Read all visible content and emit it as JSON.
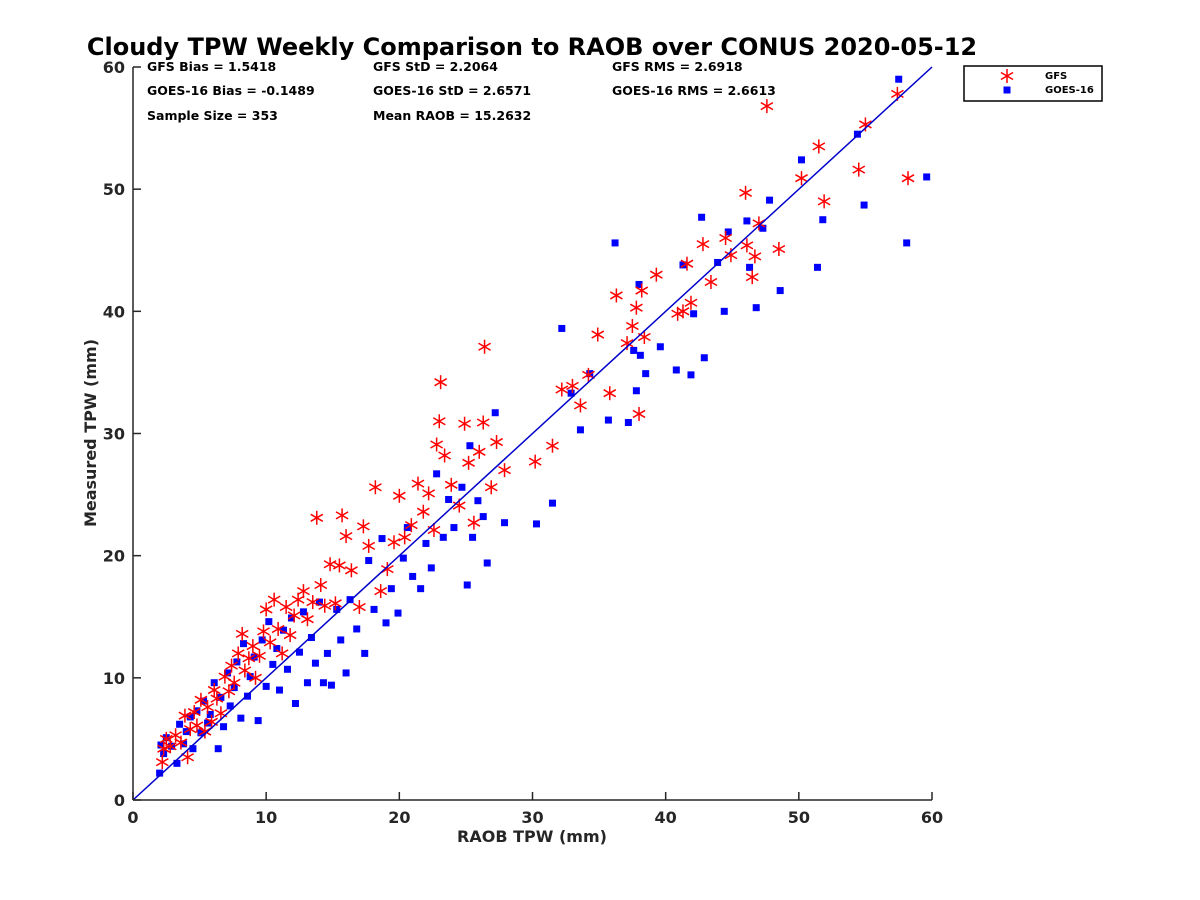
{
  "chart_data": {
    "type": "scatter",
    "title": "Cloudy TPW Weekly Comparison to RAOB over CONUS 2020-05-12",
    "xlabel": "RAOB TPW (mm)",
    "ylabel": "Measured TPW (mm)",
    "xlim": [
      0,
      60
    ],
    "ylim": [
      0,
      60
    ],
    "xticks": [
      "0",
      "10",
      "20",
      "30",
      "40",
      "50",
      "60"
    ],
    "yticks": [
      "0",
      "10",
      "20",
      "30",
      "40",
      "50",
      "60"
    ],
    "grid": false,
    "legend_position": "top-right outside",
    "reference_line": {
      "type": "1:1",
      "color": "#0000cc"
    },
    "stats": [
      {
        "text": "GFS Bias = 1.5418"
      },
      {
        "text": "GFS StD = 2.2064"
      },
      {
        "text": "GFS RMS = 2.6918"
      },
      {
        "text": "GOES-16 Bias = -0.1489"
      },
      {
        "text": "GOES-16 StD = 2.6571"
      },
      {
        "text": "GOES-16 RMS = 2.6613"
      },
      {
        "text": "Sample Size = 353"
      },
      {
        "text": "Mean RAOB = 15.2632"
      }
    ],
    "series": [
      {
        "name": "GFS",
        "marker": "asterisk",
        "color": "#ff0000",
        "points": [
          [
            2.2,
            3.1
          ],
          [
            2.3,
            4.2
          ],
          [
            2.5,
            5.0
          ],
          [
            2.8,
            4.4
          ],
          [
            3.2,
            5.3
          ],
          [
            3.6,
            4.7
          ],
          [
            3.9,
            6.9
          ],
          [
            4.1,
            3.5
          ],
          [
            4.3,
            5.8
          ],
          [
            4.6,
            7.2
          ],
          [
            4.8,
            6.1
          ],
          [
            5.1,
            8.2
          ],
          [
            5.4,
            5.6
          ],
          [
            5.6,
            7.6
          ],
          [
            5.9,
            6.4
          ],
          [
            6.1,
            9.0
          ],
          [
            6.3,
            8.3
          ],
          [
            6.6,
            7.1
          ],
          [
            6.9,
            10.1
          ],
          [
            7.2,
            8.9
          ],
          [
            7.4,
            11.0
          ],
          [
            7.6,
            9.6
          ],
          [
            7.9,
            12.0
          ],
          [
            8.2,
            13.6
          ],
          [
            8.4,
            10.6
          ],
          [
            8.7,
            11.6
          ],
          [
            9.0,
            12.6
          ],
          [
            9.2,
            10.0
          ],
          [
            9.5,
            11.8
          ],
          [
            9.8,
            13.8
          ],
          [
            10.0,
            15.6
          ],
          [
            10.3,
            12.9
          ],
          [
            10.6,
            16.4
          ],
          [
            10.9,
            14.0
          ],
          [
            11.2,
            12.0
          ],
          [
            11.5,
            15.8
          ],
          [
            11.8,
            13.5
          ],
          [
            12.1,
            15.1
          ],
          [
            12.4,
            16.4
          ],
          [
            12.8,
            17.1
          ],
          [
            13.1,
            14.8
          ],
          [
            13.5,
            16.2
          ],
          [
            13.8,
            23.1
          ],
          [
            14.1,
            17.6
          ],
          [
            14.4,
            15.9
          ],
          [
            14.8,
            19.3
          ],
          [
            15.2,
            16.1
          ],
          [
            15.5,
            19.2
          ],
          [
            15.7,
            23.3
          ],
          [
            16.0,
            21.6
          ],
          [
            16.4,
            18.8
          ],
          [
            17.0,
            15.8
          ],
          [
            17.3,
            22.4
          ],
          [
            17.7,
            20.8
          ],
          [
            18.2,
            25.6
          ],
          [
            18.6,
            17.1
          ],
          [
            19.1,
            18.9
          ],
          [
            19.6,
            21.1
          ],
          [
            20.0,
            24.9
          ],
          [
            20.4,
            21.5
          ],
          [
            20.9,
            22.5
          ],
          [
            21.4,
            25.9
          ],
          [
            21.8,
            23.6
          ],
          [
            22.2,
            25.1
          ],
          [
            22.6,
            22.1
          ],
          [
            22.8,
            29.1
          ],
          [
            23.0,
            31.0
          ],
          [
            23.1,
            34.2
          ],
          [
            23.4,
            28.2
          ],
          [
            23.9,
            25.8
          ],
          [
            24.5,
            24.1
          ],
          [
            24.9,
            30.8
          ],
          [
            25.2,
            27.6
          ],
          [
            25.6,
            22.7
          ],
          [
            26.0,
            28.5
          ],
          [
            26.3,
            30.9
          ],
          [
            26.4,
            37.1
          ],
          [
            26.9,
            25.6
          ],
          [
            27.3,
            29.3
          ],
          [
            27.9,
            27.0
          ],
          [
            30.2,
            27.7
          ],
          [
            31.5,
            29.0
          ],
          [
            32.2,
            33.6
          ],
          [
            33.0,
            33.9
          ],
          [
            33.6,
            32.3
          ],
          [
            34.2,
            34.8
          ],
          [
            34.9,
            38.1
          ],
          [
            35.8,
            33.3
          ],
          [
            36.3,
            41.3
          ],
          [
            37.1,
            37.4
          ],
          [
            37.5,
            38.8
          ],
          [
            37.8,
            40.3
          ],
          [
            38.0,
            31.6
          ],
          [
            38.2,
            41.7
          ],
          [
            38.4,
            37.9
          ],
          [
            39.3,
            43.0
          ],
          [
            40.9,
            39.8
          ],
          [
            41.3,
            40.0
          ],
          [
            41.6,
            43.9
          ],
          [
            41.9,
            40.7
          ],
          [
            42.8,
            45.5
          ],
          [
            43.4,
            42.4
          ],
          [
            44.5,
            46.0
          ],
          [
            44.9,
            44.6
          ],
          [
            46.0,
            49.7
          ],
          [
            46.1,
            45.4
          ],
          [
            46.5,
            42.8
          ],
          [
            46.7,
            44.5
          ],
          [
            47.0,
            47.2
          ],
          [
            47.6,
            56.8
          ],
          [
            48.5,
            45.1
          ],
          [
            50.2,
            50.9
          ],
          [
            51.5,
            53.5
          ],
          [
            51.9,
            49.0
          ],
          [
            54.5,
            51.6
          ],
          [
            55.0,
            55.3
          ],
          [
            57.4,
            57.8
          ],
          [
            58.2,
            50.9
          ]
        ]
      },
      {
        "name": "GOES-16",
        "marker": "square",
        "color": "#0000ff",
        "points": [
          [
            2.0,
            2.2
          ],
          [
            2.1,
            4.5
          ],
          [
            2.3,
            3.8
          ],
          [
            2.5,
            5.1
          ],
          [
            2.9,
            4.4
          ],
          [
            3.3,
            3.0
          ],
          [
            3.5,
            6.2
          ],
          [
            3.8,
            4.6
          ],
          [
            4.0,
            5.6
          ],
          [
            4.3,
            6.8
          ],
          [
            4.5,
            4.2
          ],
          [
            4.8,
            7.3
          ],
          [
            5.1,
            5.5
          ],
          [
            5.3,
            8.1
          ],
          [
            5.6,
            6.3
          ],
          [
            5.8,
            7.0
          ],
          [
            6.1,
            9.6
          ],
          [
            6.4,
            4.2
          ],
          [
            6.6,
            8.4
          ],
          [
            6.8,
            6.0
          ],
          [
            7.1,
            10.4
          ],
          [
            7.3,
            7.7
          ],
          [
            7.6,
            9.2
          ],
          [
            7.8,
            11.3
          ],
          [
            8.1,
            6.7
          ],
          [
            8.3,
            12.8
          ],
          [
            8.6,
            8.5
          ],
          [
            8.8,
            10.1
          ],
          [
            9.1,
            11.7
          ],
          [
            9.4,
            6.5
          ],
          [
            9.7,
            13.1
          ],
          [
            10.0,
            9.3
          ],
          [
            10.2,
            14.6
          ],
          [
            10.5,
            11.1
          ],
          [
            10.8,
            12.4
          ],
          [
            11.0,
            9.0
          ],
          [
            11.3,
            13.9
          ],
          [
            11.6,
            10.7
          ],
          [
            11.9,
            14.9
          ],
          [
            12.2,
            7.9
          ],
          [
            12.5,
            12.1
          ],
          [
            12.8,
            15.4
          ],
          [
            13.1,
            9.6
          ],
          [
            13.4,
            13.3
          ],
          [
            13.7,
            11.2
          ],
          [
            14.0,
            16.2
          ],
          [
            14.3,
            9.6
          ],
          [
            14.6,
            12.0
          ],
          [
            14.9,
            9.4
          ],
          [
            15.3,
            15.6
          ],
          [
            15.6,
            13.1
          ],
          [
            16.0,
            10.4
          ],
          [
            16.3,
            16.4
          ],
          [
            16.8,
            14.0
          ],
          [
            17.4,
            12.0
          ],
          [
            17.7,
            19.6
          ],
          [
            18.1,
            15.6
          ],
          [
            18.7,
            21.4
          ],
          [
            19.0,
            14.5
          ],
          [
            19.4,
            17.3
          ],
          [
            19.9,
            15.3
          ],
          [
            20.3,
            19.8
          ],
          [
            20.6,
            22.3
          ],
          [
            21.0,
            18.3
          ],
          [
            21.6,
            17.3
          ],
          [
            22.0,
            21.0
          ],
          [
            22.4,
            19.0
          ],
          [
            22.8,
            26.7
          ],
          [
            23.3,
            21.5
          ],
          [
            23.7,
            24.6
          ],
          [
            24.1,
            22.3
          ],
          [
            24.7,
            25.6
          ],
          [
            25.1,
            17.6
          ],
          [
            25.3,
            29.0
          ],
          [
            25.5,
            21.5
          ],
          [
            25.9,
            24.5
          ],
          [
            26.3,
            23.2
          ],
          [
            26.6,
            19.4
          ],
          [
            27.2,
            31.7
          ],
          [
            27.9,
            22.7
          ],
          [
            30.3,
            22.6
          ],
          [
            31.5,
            24.3
          ],
          [
            32.2,
            38.6
          ],
          [
            32.9,
            33.3
          ],
          [
            33.6,
            30.3
          ],
          [
            34.3,
            34.9
          ],
          [
            35.7,
            31.1
          ],
          [
            36.2,
            45.6
          ],
          [
            37.2,
            30.9
          ],
          [
            37.6,
            36.8
          ],
          [
            37.8,
            33.5
          ],
          [
            38.0,
            42.2
          ],
          [
            38.1,
            36.4
          ],
          [
            38.5,
            34.9
          ],
          [
            39.6,
            37.1
          ],
          [
            40.8,
            35.2
          ],
          [
            41.3,
            43.8
          ],
          [
            41.9,
            34.8
          ],
          [
            42.1,
            39.8
          ],
          [
            42.7,
            47.7
          ],
          [
            42.9,
            36.2
          ],
          [
            43.9,
            44.0
          ],
          [
            44.4,
            40.0
          ],
          [
            44.7,
            46.5
          ],
          [
            46.1,
            47.4
          ],
          [
            46.3,
            43.6
          ],
          [
            46.8,
            40.3
          ],
          [
            47.3,
            46.8
          ],
          [
            47.8,
            49.1
          ],
          [
            48.6,
            41.7
          ],
          [
            50.2,
            52.4
          ],
          [
            51.4,
            43.6
          ],
          [
            51.8,
            47.5
          ],
          [
            54.4,
            54.5
          ],
          [
            54.9,
            48.7
          ],
          [
            57.5,
            59.0
          ],
          [
            58.1,
            45.6
          ],
          [
            59.6,
            51.0
          ]
        ]
      }
    ]
  }
}
